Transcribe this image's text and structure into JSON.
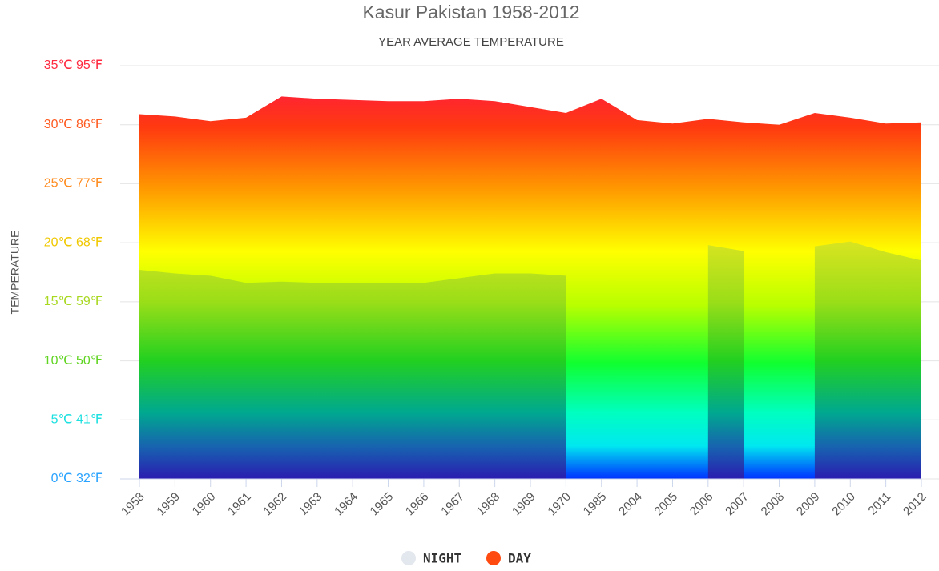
{
  "chart_data": {
    "type": "area",
    "title": "Kasur Pakistan 1958-2012",
    "subtitle": "YEAR AVERAGE TEMPERATURE",
    "y_label": "TEMPERATURE",
    "categories": [
      "1958",
      "1959",
      "1960",
      "1961",
      "1962",
      "1963",
      "1964",
      "1965",
      "1966",
      "1967",
      "1968",
      "1969",
      "1970",
      "1985",
      "2004",
      "2005",
      "2006",
      "2007",
      "2008",
      "2009",
      "2010",
      "2011",
      "2012"
    ],
    "series": [
      {
        "name": "NIGHT",
        "color": "#e3e7ee",
        "values": [
          17.7,
          17.4,
          17.2,
          16.6,
          16.7,
          16.6,
          16.6,
          16.6,
          16.6,
          17.0,
          17.4,
          17.4,
          17.2,
          null,
          null,
          null,
          19.8,
          19.3,
          null,
          19.7,
          20.1,
          19.2,
          18.5
        ]
      },
      {
        "name": "DAY",
        "color": "#ff4a10",
        "values": [
          30.9,
          30.7,
          30.3,
          30.6,
          32.4,
          32.2,
          32.1,
          32.0,
          32.0,
          32.2,
          32.0,
          31.5,
          31.0,
          32.2,
          30.4,
          30.1,
          30.5,
          30.2,
          30.0,
          31.0,
          30.6,
          30.1,
          30.2
        ]
      }
    ],
    "ylim": [
      0,
      35
    ],
    "yticks": [
      {
        "value": 0,
        "label": "0℃ 32℉"
      },
      {
        "value": 5,
        "label": "5℃ 41℉"
      },
      {
        "value": 10,
        "label": "10℃ 50℉"
      },
      {
        "value": 15,
        "label": "15℃ 59℉"
      },
      {
        "value": 20,
        "label": "20℃ 68℉"
      },
      {
        "value": 25,
        "label": "25℃ 77℉"
      },
      {
        "value": 30,
        "label": "30℃ 86℉"
      },
      {
        "value": 35,
        "label": "35℃ 95℉"
      }
    ],
    "grid": true
  }
}
